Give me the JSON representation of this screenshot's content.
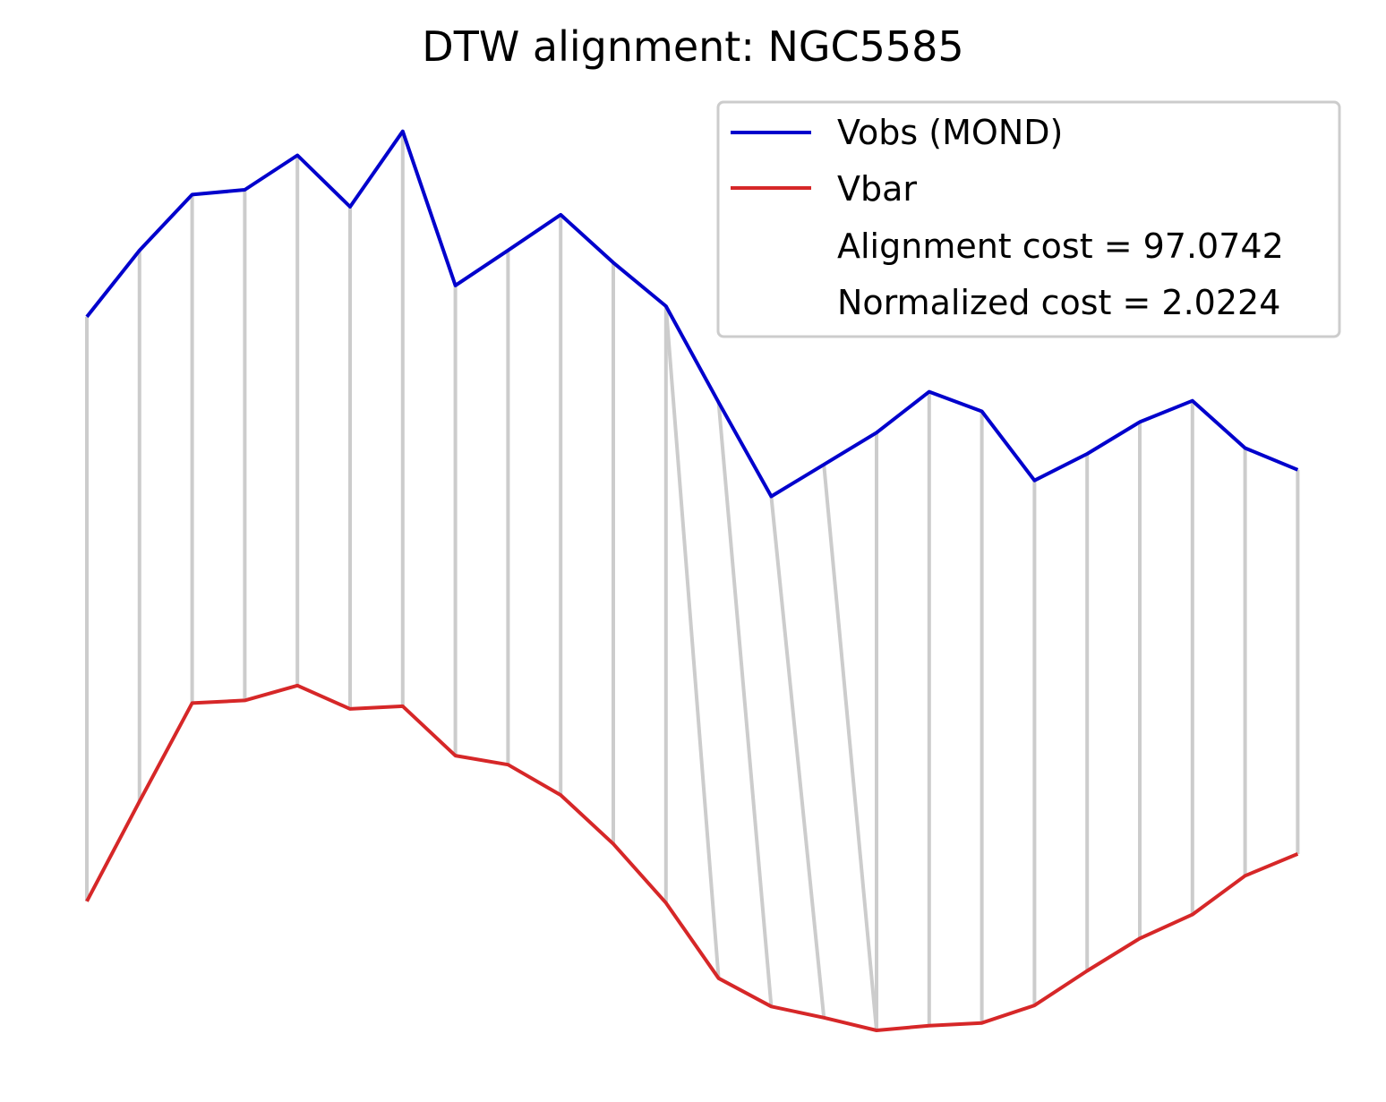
{
  "chart_data": {
    "type": "line",
    "title": "DTW alignment: NGC5585",
    "xlabel": "",
    "ylabel": "",
    "axes_visible": false,
    "grid": false,
    "legend_position": "top-right",
    "series": [
      {
        "name": "Vobs (MOND)",
        "color": "#0000cc",
        "values": [
          54.3,
          66.8,
          77.3,
          78.2,
          84.7,
          75.0,
          89.2,
          60.2,
          66.8,
          73.5,
          64.5,
          56.3,
          38.2,
          20.5,
          26.5,
          32.5,
          40.2,
          36.5,
          23.5,
          28.5,
          34.5,
          38.5,
          29.6,
          25.5
        ]
      },
      {
        "name": "Vbar",
        "color": "#d62728",
        "values": [
          -55.7,
          -36.9,
          -18.4,
          -17.9,
          -15.1,
          -19.5,
          -19.0,
          -28.3,
          -30.0,
          -35.7,
          -44.9,
          -56.0,
          -70.2,
          -75.5,
          -77.6,
          -80.0,
          -79.1,
          -78.6,
          -75.3,
          -68.8,
          -62.7,
          -58.2,
          -50.9,
          -46.8
        ]
      }
    ],
    "alignment_path": [
      [
        0,
        0
      ],
      [
        1,
        1
      ],
      [
        2,
        2
      ],
      [
        3,
        3
      ],
      [
        4,
        4
      ],
      [
        5,
        5
      ],
      [
        6,
        6
      ],
      [
        7,
        7
      ],
      [
        8,
        8
      ],
      [
        9,
        9
      ],
      [
        10,
        10
      ],
      [
        11,
        11
      ],
      [
        11,
        12
      ],
      [
        12,
        13
      ],
      [
        13,
        14
      ],
      [
        14,
        15
      ],
      [
        15,
        15
      ],
      [
        16,
        16
      ],
      [
        17,
        17
      ],
      [
        18,
        18
      ],
      [
        19,
        19
      ],
      [
        20,
        20
      ],
      [
        21,
        21
      ],
      [
        22,
        22
      ],
      [
        23,
        23
      ]
    ],
    "connector_color": "#cccccc",
    "legend_extra": [
      {
        "key": "alignment_cost",
        "text": "Alignment cost = 97.0742"
      },
      {
        "key": "normalized_cost",
        "text": "Normalized cost = 2.0224"
      }
    ]
  }
}
